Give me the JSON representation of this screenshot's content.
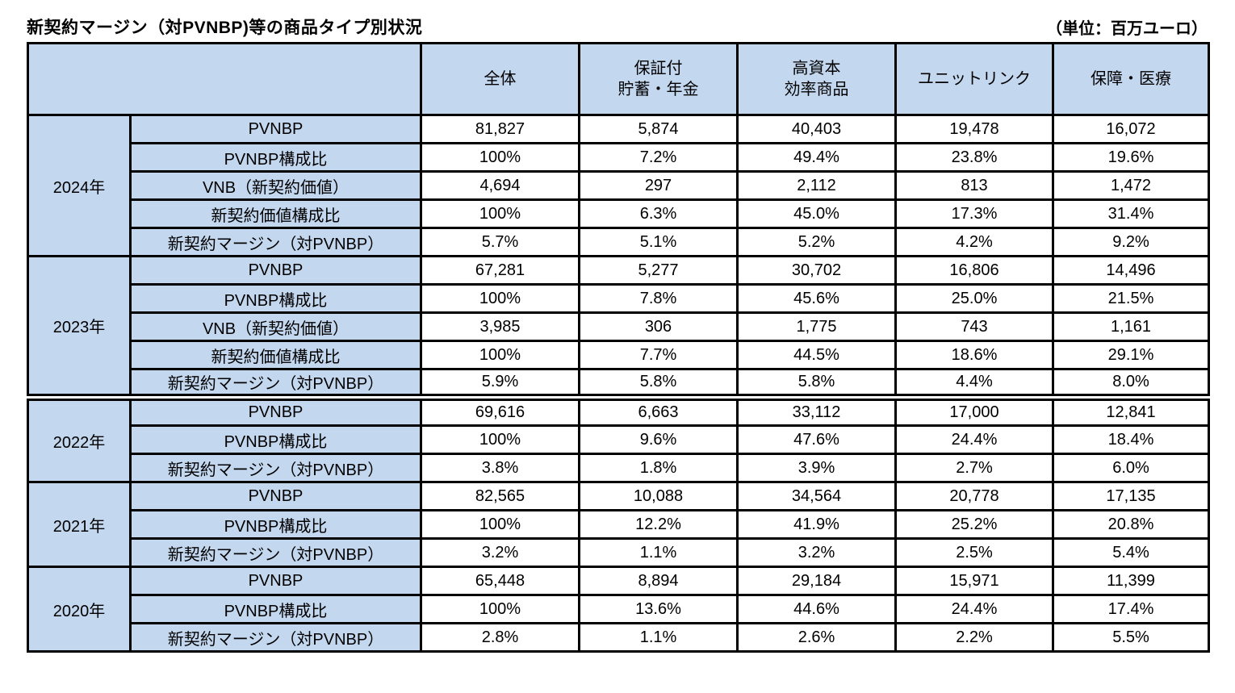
{
  "title": "新契約マージン（対PVNBP)等の商品タイプ別状況",
  "unit_label": "（単位：百万ユーロ）",
  "colors": {
    "header_bg": "#c3d7ef",
    "border": "#000000",
    "cell_bg": "#ffffff",
    "text": "#000000"
  },
  "table": {
    "column_headers": [
      "全体",
      "保証付\n貯蓄・年金",
      "高資本\n効率商品",
      "ユニットリンク",
      "保障・医療"
    ],
    "year_groups": [
      {
        "year": "2024年",
        "thick_separator_above": false,
        "rows": [
          {
            "label": "PVNBP",
            "values": [
              "81,827",
              "5,874",
              "40,403",
              "19,478",
              "16,072"
            ]
          },
          {
            "label": "PVNBP構成比",
            "values": [
              "100%",
              "7.2%",
              "49.4%",
              "23.8%",
              "19.6%"
            ]
          },
          {
            "label": "VNB（新契約価値）",
            "values": [
              "4,694",
              "297",
              "2,112",
              "813",
              "1,472"
            ]
          },
          {
            "label": "新契約価値構成比",
            "values": [
              "100%",
              "6.3%",
              "45.0%",
              "17.3%",
              "31.4%"
            ]
          },
          {
            "label": "新契約マージン（対PVNBP）",
            "values": [
              "5.7%",
              "5.1%",
              "5.2%",
              "4.2%",
              "9.2%"
            ]
          }
        ]
      },
      {
        "year": "2023年",
        "thick_separator_above": false,
        "rows": [
          {
            "label": "PVNBP",
            "values": [
              "67,281",
              "5,277",
              "30,702",
              "16,806",
              "14,496"
            ]
          },
          {
            "label": "PVNBP構成比",
            "values": [
              "100%",
              "7.8%",
              "45.6%",
              "25.0%",
              "21.5%"
            ]
          },
          {
            "label": "VNB（新契約価値）",
            "values": [
              "3,985",
              "306",
              "1,775",
              "743",
              "1,161"
            ]
          },
          {
            "label": "新契約価値構成比",
            "values": [
              "100%",
              "7.7%",
              "44.5%",
              "18.6%",
              "29.1%"
            ]
          },
          {
            "label": "新契約マージン（対PVNBP）",
            "values": [
              "5.9%",
              "5.8%",
              "5.8%",
              "4.4%",
              "8.0%"
            ]
          }
        ]
      },
      {
        "year": "2022年",
        "thick_separator_above": true,
        "rows": [
          {
            "label": "PVNBP",
            "values": [
              "69,616",
              "6,663",
              "33,112",
              "17,000",
              "12,841"
            ]
          },
          {
            "label": "PVNBP構成比",
            "values": [
              "100%",
              "9.6%",
              "47.6%",
              "24.4%",
              "18.4%"
            ]
          },
          {
            "label": "新契約マージン（対PVNBP）",
            "values": [
              "3.8%",
              "1.8%",
              "3.9%",
              "2.7%",
              "6.0%"
            ]
          }
        ]
      },
      {
        "year": "2021年",
        "thick_separator_above": false,
        "rows": [
          {
            "label": "PVNBP",
            "values": [
              "82,565",
              "10,088",
              "34,564",
              "20,778",
              "17,135"
            ]
          },
          {
            "label": "PVNBP構成比",
            "values": [
              "100%",
              "12.2%",
              "41.9%",
              "25.2%",
              "20.8%"
            ]
          },
          {
            "label": "新契約マージン（対PVNBP）",
            "values": [
              "3.2%",
              "1.1%",
              "3.2%",
              "2.5%",
              "5.4%"
            ]
          }
        ]
      },
      {
        "year": "2020年",
        "thick_separator_above": false,
        "rows": [
          {
            "label": "PVNBP",
            "values": [
              "65,448",
              "8,894",
              "29,184",
              "15,971",
              "11,399"
            ]
          },
          {
            "label": "PVNBP構成比",
            "values": [
              "100%",
              "13.6%",
              "44.6%",
              "24.4%",
              "17.4%"
            ]
          },
          {
            "label": "新契約マージン（対PVNBP）",
            "values": [
              "2.8%",
              "1.1%",
              "2.6%",
              "2.2%",
              "5.5%"
            ]
          }
        ]
      }
    ]
  }
}
